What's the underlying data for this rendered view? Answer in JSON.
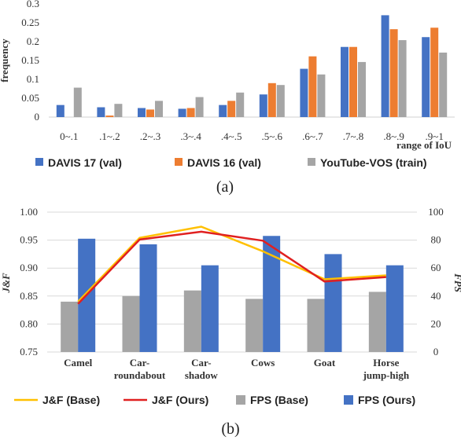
{
  "chart_data": [
    {
      "type": "bar",
      "caption": "(a)",
      "categories": [
        "0~.1",
        ".1~.2",
        ".2~.3",
        ".3~.4",
        ".4~.5",
        ".5~.6",
        ".6~.7",
        ".7~.8",
        ".8~.9",
        ".9~1"
      ],
      "series": [
        {
          "name": "DAVIS 17 (val)",
          "color": "#4472c4",
          "values": [
            0.032,
            0.026,
            0.024,
            0.022,
            0.032,
            0.06,
            0.128,
            0.186,
            0.27,
            0.212
          ]
        },
        {
          "name": "DAVIS 16 (val)",
          "color": "#ed7d31",
          "values": [
            0.0,
            0.004,
            0.02,
            0.024,
            0.043,
            0.09,
            0.161,
            0.186,
            0.233,
            0.237
          ]
        },
        {
          "name": "YouTube-VOS (train)",
          "color": "#a5a5a5",
          "values": [
            0.078,
            0.035,
            0.043,
            0.053,
            0.065,
            0.085,
            0.113,
            0.146,
            0.204,
            0.171
          ]
        }
      ],
      "ylabel": "frequency",
      "xlabel": "range of IoU",
      "ylim": [
        0,
        0.3
      ],
      "yticks": [
        "0",
        "0.05",
        "0.1",
        "0.15",
        "0.2",
        "0.25",
        "0.3"
      ],
      "grid": false,
      "legend_position": "bottom"
    },
    {
      "type": "bar+line",
      "caption": "(b)",
      "categories": [
        "Camel",
        "Car-roundabout",
        "Car-shadow",
        "Cows",
        "Goat",
        "Horse jump-high"
      ],
      "category_lines": [
        [
          "Camel"
        ],
        [
          "Car-",
          "roundabout"
        ],
        [
          "Car-",
          "shadow"
        ],
        [
          "Cows"
        ],
        [
          "Goat"
        ],
        [
          "Horse",
          "jump-high"
        ]
      ],
      "bar_series": [
        {
          "name": "FPS (Base)",
          "color": "#a5a5a5",
          "axis": "right",
          "values": [
            36,
            40,
            44,
            38,
            38,
            43
          ]
        },
        {
          "name": "FPS (Ours)",
          "color": "#4472c4",
          "axis": "right",
          "values": [
            81,
            77,
            62,
            83,
            70,
            62
          ]
        }
      ],
      "line_series": [
        {
          "name": "J&F (Base)",
          "color": "#ffc000",
          "axis": "left",
          "values": [
            0.84,
            0.954,
            0.974,
            0.93,
            0.88,
            0.887
          ]
        },
        {
          "name": "J&F (Ours)",
          "color": "#e02020",
          "axis": "left",
          "values": [
            0.836,
            0.951,
            0.965,
            0.949,
            0.876,
            0.884
          ]
        }
      ],
      "ylabel_left": "J&F",
      "ylabel_right": "FPS",
      "ylim_left": [
        0.75,
        1.0
      ],
      "ylim_right": [
        0,
        100
      ],
      "yticks_left": [
        "0.75",
        "0.80",
        "0.85",
        "0.90",
        "0.95",
        "1.00"
      ],
      "yticks_right": [
        "0",
        "20",
        "40",
        "60",
        "80",
        "100"
      ],
      "grid": true,
      "legend_position": "bottom"
    }
  ]
}
